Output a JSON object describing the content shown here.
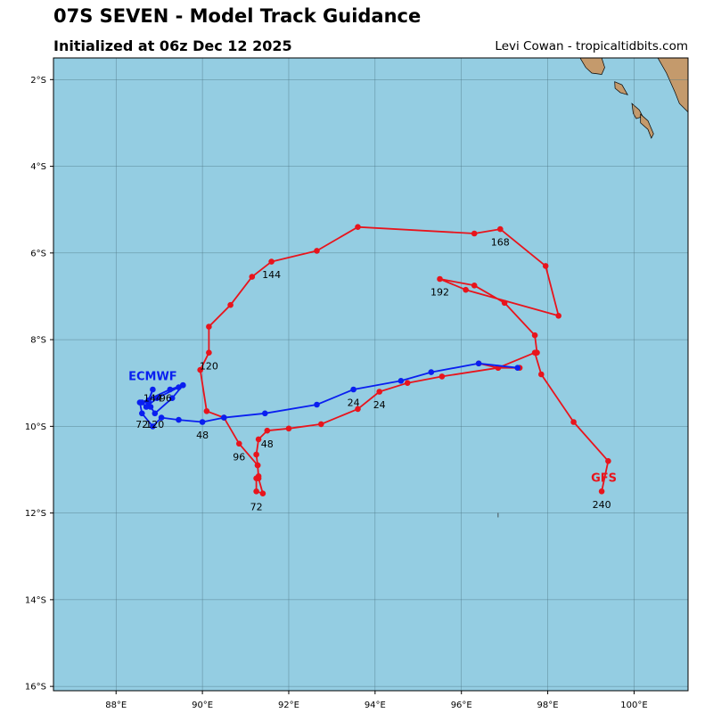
{
  "header": {
    "title": "07S SEVEN - Model Track Guidance",
    "subtitle": "Initialized at 06z Dec 12 2025",
    "credit": "Levi Cowan - tropicaltidbits.com"
  },
  "colors": {
    "ocean": "#94cde2",
    "land": "#c49a6c",
    "grid": "#4d7584",
    "gfs": "#e8141c",
    "ecmwf": "#0a1ff0"
  },
  "map": {
    "lon_range": [
      86.55,
      101.25
    ],
    "lat_range": [
      -16.1,
      -1.5
    ],
    "lon_ticks": [
      {
        "value": 88,
        "label": "88°E"
      },
      {
        "value": 90,
        "label": "90°E"
      },
      {
        "value": 92,
        "label": "92°E"
      },
      {
        "value": 94,
        "label": "94°E"
      },
      {
        "value": 96,
        "label": "96°E"
      },
      {
        "value": 98,
        "label": "98°E"
      },
      {
        "value": 100,
        "label": "100°E"
      }
    ],
    "lat_ticks": [
      {
        "value": -2,
        "label": "2°S"
      },
      {
        "value": -4,
        "label": "4°S"
      },
      {
        "value": -6,
        "label": "6°S"
      },
      {
        "value": -8,
        "label": "8°S"
      },
      {
        "value": -10,
        "label": "10°S"
      },
      {
        "value": -12,
        "label": "12°S"
      },
      {
        "value": -14,
        "label": "14°S"
      },
      {
        "value": -16,
        "label": "16°S"
      }
    ],
    "land_polygons": [
      [
        [
          101.25,
          -1.5
        ],
        [
          100.55,
          -1.5
        ],
        [
          100.75,
          -1.85
        ],
        [
          100.95,
          -2.3
        ],
        [
          101.05,
          -2.55
        ],
        [
          101.25,
          -2.75
        ]
      ],
      [
        [
          98.75,
          -1.5
        ],
        [
          99.25,
          -1.5
        ],
        [
          99.32,
          -1.72
        ],
        [
          99.25,
          -1.88
        ],
        [
          99.02,
          -1.85
        ],
        [
          98.88,
          -1.72
        ]
      ],
      [
        [
          99.55,
          -2.05
        ],
        [
          99.72,
          -2.12
        ],
        [
          99.85,
          -2.35
        ],
        [
          99.68,
          -2.3
        ],
        [
          99.56,
          -2.2
        ]
      ],
      [
        [
          99.95,
          -2.55
        ],
        [
          100.12,
          -2.7
        ],
        [
          100.2,
          -2.85
        ],
        [
          100.05,
          -2.9
        ],
        [
          99.98,
          -2.78
        ]
      ],
      [
        [
          100.15,
          -2.8
        ],
        [
          100.32,
          -2.95
        ],
        [
          100.45,
          -3.25
        ],
        [
          100.4,
          -3.35
        ],
        [
          100.32,
          -3.15
        ],
        [
          100.15,
          -3.0
        ]
      ]
    ],
    "small_island": "ı"
  },
  "models": {
    "gfs": {
      "name": "GFS",
      "label_position": [
        99.3,
        -11.2
      ],
      "track": [
        [
          96.4,
          -8.55
        ],
        [
          96.85,
          -8.65
        ],
        [
          97.7,
          -8.3
        ],
        [
          97.85,
          -8.8
        ],
        [
          98.6,
          -9.9
        ],
        [
          99.4,
          -10.8
        ],
        [
          99.25,
          -11.5
        ]
      ],
      "branch": [
        [
          97.35,
          -8.65
        ],
        [
          96.85,
          -8.65
        ],
        [
          95.55,
          -8.85
        ],
        [
          94.75,
          -9.0
        ],
        [
          94.1,
          -9.2
        ],
        [
          93.6,
          -9.6
        ],
        [
          92.75,
          -9.95
        ],
        [
          92.0,
          -10.05
        ],
        [
          91.5,
          -10.1
        ],
        [
          91.3,
          -10.3
        ],
        [
          91.25,
          -10.65
        ],
        [
          91.28,
          -10.9
        ],
        [
          91.3,
          -11.15
        ],
        [
          91.25,
          -11.2
        ],
        [
          91.25,
          -11.5
        ],
        [
          91.4,
          -11.55
        ],
        [
          91.3,
          -11.2
        ],
        [
          91.28,
          -10.9
        ],
        [
          90.85,
          -10.4
        ],
        [
          90.5,
          -9.8
        ],
        [
          90.1,
          -9.65
        ],
        [
          89.95,
          -8.7
        ],
        [
          90.15,
          -8.3
        ],
        [
          90.15,
          -7.7
        ],
        [
          90.65,
          -7.2
        ],
        [
          91.15,
          -6.55
        ],
        [
          91.6,
          -6.2
        ],
        [
          92.65,
          -5.95
        ],
        [
          93.6,
          -5.4
        ],
        [
          96.3,
          -5.55
        ],
        [
          96.9,
          -5.45
        ],
        [
          97.95,
          -6.3
        ],
        [
          98.25,
          -7.45
        ],
        [
          96.1,
          -6.85
        ],
        [
          95.5,
          -6.6
        ],
        [
          96.3,
          -6.75
        ],
        [
          97.0,
          -7.15
        ],
        [
          97.7,
          -7.9
        ],
        [
          97.75,
          -8.3
        ]
      ],
      "labels": [
        {
          "text": "24",
          "pos": [
            94.1,
            -9.5
          ]
        },
        {
          "text": "48",
          "pos": [
            91.5,
            -10.4
          ]
        },
        {
          "text": "72",
          "pos": [
            91.25,
            -11.85
          ]
        },
        {
          "text": "96",
          "pos": [
            90.85,
            -10.7
          ]
        },
        {
          "text": "120",
          "pos": [
            90.15,
            -8.6
          ]
        },
        {
          "text": "144",
          "pos": [
            91.6,
            -6.5
          ]
        },
        {
          "text": "168",
          "pos": [
            96.9,
            -5.75
          ]
        },
        {
          "text": "192",
          "pos": [
            95.5,
            -6.9
          ]
        },
        {
          "text": "240",
          "pos": [
            99.25,
            -11.8
          ]
        }
      ]
    },
    "ecmwf": {
      "name": "ECMWF",
      "label_position": [
        88.85,
        -8.85
      ],
      "track": [
        [
          97.3,
          -8.65
        ],
        [
          96.4,
          -8.55
        ],
        [
          95.3,
          -8.75
        ],
        [
          94.6,
          -8.95
        ],
        [
          93.5,
          -9.15
        ],
        [
          92.65,
          -9.5
        ],
        [
          91.45,
          -9.7
        ],
        [
          90.5,
          -9.8
        ],
        [
          90.0,
          -9.9
        ],
        [
          89.45,
          -9.85
        ],
        [
          89.05,
          -9.8
        ],
        [
          88.85,
          -10.0
        ],
        [
          88.6,
          -9.7
        ],
        [
          88.55,
          -9.45
        ],
        [
          88.75,
          -9.45
        ],
        [
          88.85,
          -9.15
        ],
        [
          88.75,
          -9.4
        ],
        [
          88.8,
          -9.55
        ],
        [
          88.9,
          -9.7
        ],
        [
          89.3,
          -9.35
        ],
        [
          89.55,
          -9.05
        ],
        [
          89.45,
          -9.1
        ],
        [
          88.95,
          -9.35
        ],
        [
          88.7,
          -9.55
        ],
        [
          88.6,
          -9.45
        ],
        [
          89.25,
          -9.15
        ],
        [
          89.55,
          -9.05
        ]
      ],
      "labels": [
        {
          "text": "24",
          "pos": [
            93.5,
            -9.45
          ]
        },
        {
          "text": "48",
          "pos": [
            90.0,
            -10.2
          ]
        },
        {
          "text": "72",
          "pos": [
            88.6,
            -9.95
          ]
        },
        {
          "text": "120",
          "pos": [
            88.9,
            -9.95
          ]
        },
        {
          "text": "144",
          "pos": [
            88.85,
            -9.35
          ]
        },
        {
          "text": "96",
          "pos": [
            89.15,
            -9.35
          ]
        }
      ]
    }
  }
}
